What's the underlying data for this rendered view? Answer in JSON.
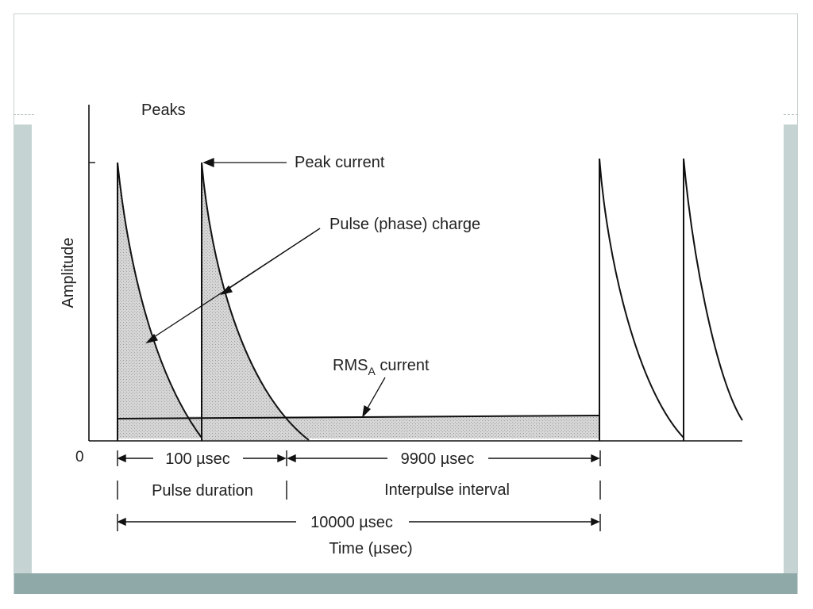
{
  "labels": {
    "peaks": "Peaks",
    "peak_current": "Peak current",
    "pulse_charge": "Pulse (phase) charge",
    "amplitude": "Amplitude",
    "rms_prefix": "RMS",
    "rms_sub": "A",
    "rms_suffix": " current",
    "origin": "0",
    "pulse_time": "100 µsec",
    "interpulse_time": "9900 µsec",
    "pulse_duration": "Pulse duration",
    "interpulse_interval": "Interpulse interval",
    "period_time": "10000 µsec",
    "x_axis_label": "Time (µsec)"
  },
  "colors": {
    "band_light": "#c6d3d3",
    "band_dark": "#8fa9a9",
    "fill_gray": "#d4d4d4",
    "stroke": "#111111"
  }
}
